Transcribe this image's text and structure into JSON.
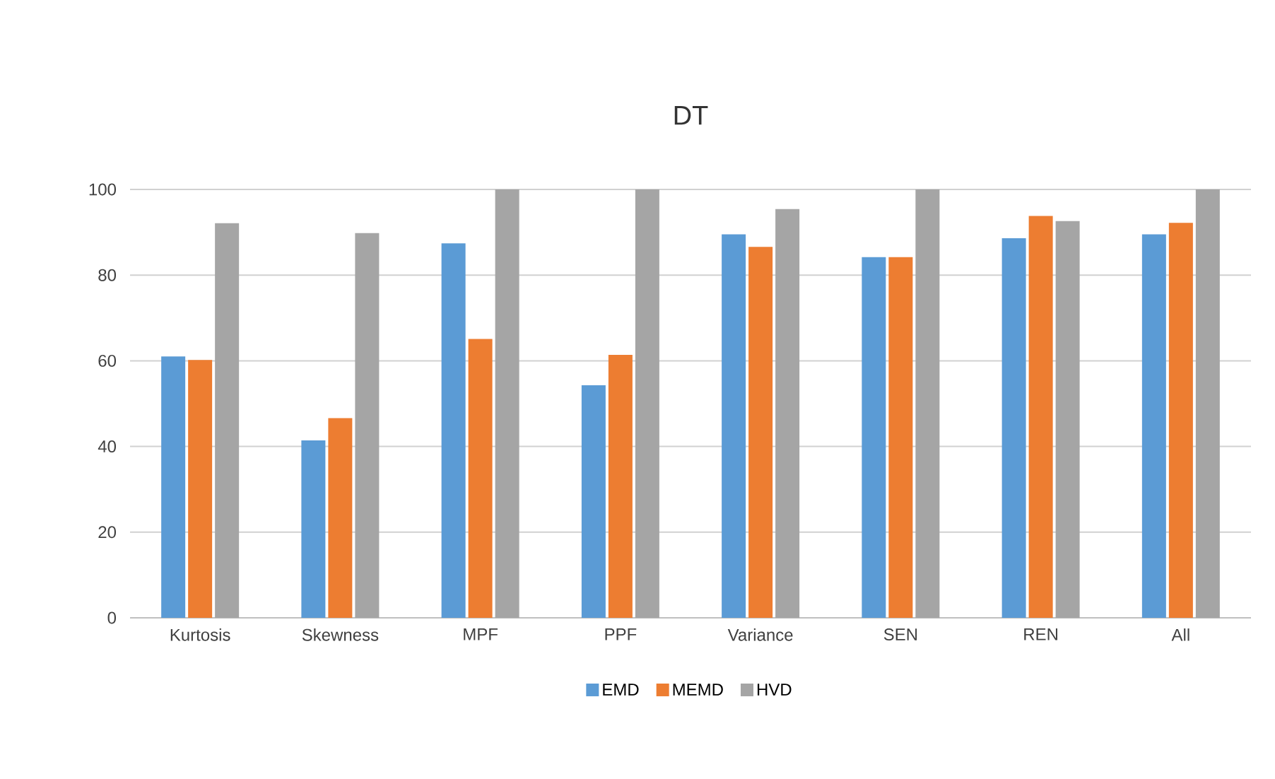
{
  "chart_data": {
    "type": "bar",
    "title": "DT",
    "categories": [
      "Kurtosis",
      "Skewness",
      "MPF",
      "PPF",
      "Variance",
      "SEN",
      "REN",
      "All"
    ],
    "series": [
      {
        "name": "EMD",
        "color": "#5b9bd5",
        "values": [
          61.0,
          41.4,
          87.4,
          54.3,
          89.5,
          84.2,
          88.6,
          89.5
        ]
      },
      {
        "name": "MEMD",
        "color": "#ed7d31",
        "values": [
          60.2,
          46.6,
          65.1,
          61.4,
          86.6,
          84.2,
          93.8,
          92.2
        ]
      },
      {
        "name": "HVD",
        "color": "#a5a5a5",
        "values": [
          92.1,
          89.8,
          100,
          100,
          95.4,
          100,
          92.6,
          100
        ]
      }
    ],
    "ylim": [
      0,
      100
    ],
    "yticks": [
      0,
      20,
      40,
      60,
      80,
      100
    ],
    "grid": "y",
    "legend": "bottom"
  }
}
